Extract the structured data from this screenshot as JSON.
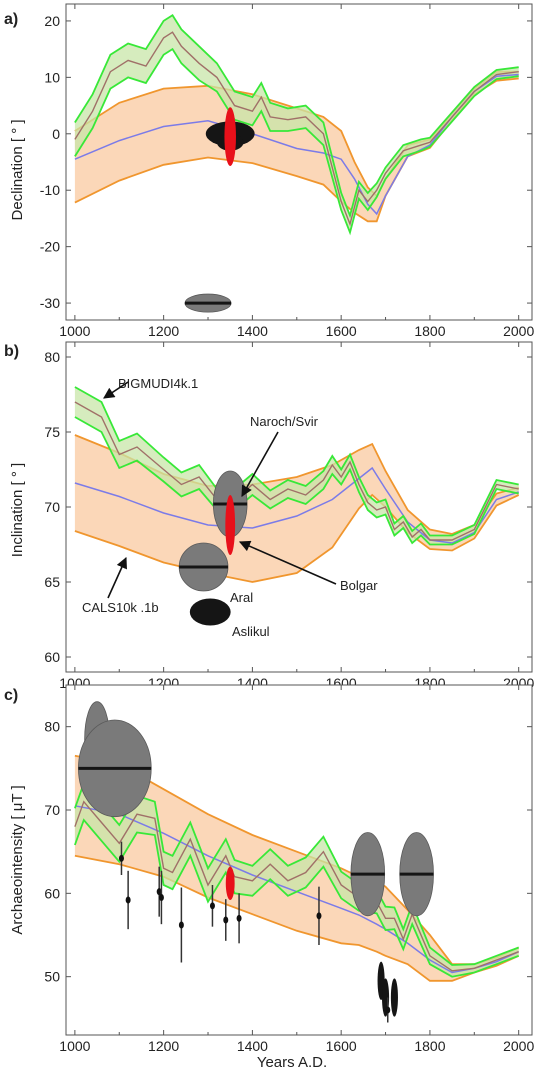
{
  "colors": {
    "band_fill": "#fbd7b8",
    "band_edge": "#f0962e",
    "cals_mean": "#7b7be8",
    "big_fill": "#c8e6a8",
    "big_edge": "#38e838",
    "big_mean": "#a07068",
    "red_marker": "#e8101a",
    "dark_ellipse": "#151515",
    "grey_ellipse": "#7a7a7a"
  },
  "annotations": {
    "bigmudi": "BIGMUDI4k.1",
    "naroch": "Naroch/Svir",
    "bolgar": "Bolgar",
    "aral": "Aral",
    "aslikul": "Aslikul",
    "cals": "CALS10k .1b"
  },
  "chart_data": [
    {
      "panel": "a)",
      "type": "line",
      "ylabel": "Declination [ ° ]",
      "xlabel": "",
      "xlim": [
        980,
        2030
      ],
      "ylim": [
        -33,
        23
      ],
      "xticks": [
        1000,
        1200,
        1400,
        1600,
        1800,
        2000
      ],
      "yticks": [
        20,
        10,
        0,
        -10,
        -20,
        -30
      ],
      "series": [
        {
          "name": "CALS10k .1b",
          "x": [
            1000,
            1100,
            1200,
            1300,
            1400,
            1500,
            1560,
            1600,
            1630,
            1660,
            1680,
            1700,
            1750,
            1800,
            1850,
            1900,
            1950,
            2000
          ],
          "mean": [
            -4.5,
            -1.2,
            1.3,
            2.3,
            0,
            -2.6,
            -3.4,
            -4.5,
            -8,
            -12.5,
            -14.2,
            -11,
            -4,
            -2,
            3,
            7.5,
            10.2,
            10.5
          ],
          "upper": [
            0.5,
            5.5,
            8,
            8.5,
            7,
            4.5,
            3,
            0.5,
            -5,
            -9.5,
            -11,
            -8,
            -2,
            -1,
            3.6,
            8,
            11,
            11
          ],
          "lower": [
            -12.2,
            -8.3,
            -5.5,
            -4.2,
            -5.2,
            -7.5,
            -9,
            -12,
            -14,
            -15.5,
            -15.5,
            -11,
            -4,
            -2.5,
            2.4,
            7,
            9.4,
            9.8
          ]
        },
        {
          "name": "BIGMUDI4k.1",
          "x": [
            1000,
            1040,
            1080,
            1120,
            1160,
            1200,
            1220,
            1240,
            1280,
            1320,
            1360,
            1400,
            1420,
            1440,
            1480,
            1520,
            1560,
            1600,
            1620,
            1640,
            1660,
            1680,
            1700,
            1740,
            1780,
            1800,
            1850,
            1900,
            1950,
            2000
          ],
          "mean": [
            -1,
            4,
            11,
            13,
            12,
            17,
            18,
            15.5,
            12.5,
            10,
            5,
            4,
            6.5,
            3,
            2.5,
            3,
            0,
            -12,
            -16,
            -10,
            -12,
            -10,
            -7,
            -3,
            -2,
            -1.5,
            3,
            7.5,
            10.5,
            11
          ],
          "half": [
            3,
            3,
            3,
            3,
            3,
            3,
            3,
            3,
            3,
            2.5,
            2.5,
            2.5,
            2.5,
            2.5,
            2,
            2,
            2,
            1.5,
            1.5,
            1.5,
            1.5,
            1.2,
            1,
            1,
            1,
            0.8,
            0.8,
            0.8,
            0.8,
            0.8
          ]
        }
      ],
      "records": [
        {
          "x": 1350,
          "y": 0,
          "rx": 55,
          "ry": 2.2,
          "style": "dark"
        },
        {
          "x": 1350,
          "y": -1.5,
          "rx": 30,
          "ry": 1.5,
          "style": "dark"
        },
        {
          "x": 1350,
          "y": -0.5,
          "rx": 13,
          "ry": 5.2,
          "style": "red"
        },
        {
          "x": 1300,
          "y": -30,
          "rx": 52,
          "ry": 1.6,
          "style": "grey",
          "line": true
        }
      ]
    },
    {
      "panel": "b)",
      "type": "line",
      "ylabel": "Inclination [ ° ]",
      "xlabel": "",
      "xlim": [
        980,
        2030
      ],
      "ylim": [
        59,
        81
      ],
      "xticks": [
        1000,
        1200,
        1400,
        1600,
        1800,
        2000
      ],
      "yticks": [
        80,
        75,
        70,
        65,
        60
      ],
      "series": [
        {
          "name": "CALS10k .1b",
          "x": [
            1000,
            1100,
            1200,
            1300,
            1400,
            1500,
            1580,
            1640,
            1670,
            1700,
            1750,
            1800,
            1850,
            1900,
            1950,
            2000
          ],
          "mean": [
            71.6,
            70.7,
            69.6,
            68.8,
            68.6,
            69.4,
            70.5,
            71.9,
            72.6,
            71.2,
            69,
            67.8,
            67.6,
            68.3,
            70.5,
            71
          ],
          "upper": [
            74.8,
            73.6,
            72.2,
            71.4,
            71.5,
            72,
            72.8,
            73.8,
            74.2,
            72.4,
            69.8,
            68.5,
            68.2,
            68.8,
            70.9,
            71.3
          ],
          "lower": [
            68.4,
            67.4,
            66.3,
            65.6,
            65,
            65.6,
            67.3,
            69.9,
            70.8,
            70,
            68.3,
            67.2,
            67.1,
            67.9,
            70.1,
            70.8
          ]
        },
        {
          "name": "BIGMUDI4k.1",
          "x": [
            1000,
            1060,
            1100,
            1140,
            1200,
            1240,
            1280,
            1320,
            1360,
            1400,
            1440,
            1480,
            1520,
            1560,
            1580,
            1600,
            1620,
            1640,
            1660,
            1680,
            1700,
            1720,
            1740,
            1760,
            1780,
            1800,
            1850,
            1900,
            1950,
            2000
          ],
          "mean": [
            77,
            76,
            73.5,
            74,
            72.5,
            71.5,
            72,
            70.5,
            70.5,
            71.5,
            70.5,
            71.2,
            70.8,
            71.8,
            72.8,
            72,
            73,
            71.5,
            70.3,
            69.8,
            70,
            68.5,
            69,
            68,
            68.5,
            67.8,
            67.8,
            68.5,
            71.5,
            71.2
          ],
          "half": [
            1,
            1,
            0.9,
            0.9,
            0.8,
            0.8,
            0.8,
            0.7,
            0.7,
            0.7,
            0.6,
            0.6,
            0.6,
            0.6,
            0.6,
            0.5,
            0.5,
            0.5,
            0.5,
            0.5,
            0.5,
            0.4,
            0.4,
            0.4,
            0.4,
            0.3,
            0.3,
            0.3,
            0.3,
            0.3
          ]
        }
      ],
      "records": [
        {
          "x": 1350,
          "y": 70.2,
          "rx": 38,
          "ry": 2.2,
          "style": "grey",
          "line": true,
          "label": "naroch"
        },
        {
          "x": 1350,
          "y": 68.8,
          "rx": 11,
          "ry": 2,
          "style": "red",
          "label": "bolgar"
        },
        {
          "x": 1290,
          "y": 66,
          "rx": 55,
          "ry": 1.6,
          "style": "grey",
          "line": true,
          "label": "aral"
        },
        {
          "x": 1305,
          "y": 63,
          "rx": 46,
          "ry": 0.9,
          "style": "dark",
          "label": "aslikul"
        }
      ]
    },
    {
      "panel": "c)",
      "type": "line",
      "ylabel": "Archaeointensity [ μT ]",
      "xlabel": "Years A.D.",
      "xlim": [
        980,
        2030
      ],
      "ylim": [
        43,
        85
      ],
      "xticks": [
        1000,
        1200,
        1400,
        1600,
        1800,
        2000
      ],
      "yticks": [
        80,
        70,
        60,
        50
      ],
      "series": [
        {
          "name": "CALS10k .1b",
          "x": [
            1000,
            1100,
            1200,
            1300,
            1400,
            1500,
            1600,
            1640,
            1680,
            1700,
            1750,
            1800,
            1850,
            1900,
            1950,
            2000
          ],
          "mean": [
            70.5,
            69.5,
            67.2,
            64.5,
            62.2,
            60.2,
            58.2,
            57.4,
            56.3,
            55.7,
            54,
            52,
            50.5,
            51,
            51.8,
            53
          ],
          "upper": [
            76.5,
            75.5,
            72.5,
            69.5,
            67,
            65,
            63,
            62,
            61.5,
            60.8,
            58,
            55,
            51.5,
            51.5,
            52.3,
            53.5
          ],
          "lower": [
            64.5,
            63.5,
            62,
            59.5,
            57.5,
            55.5,
            54,
            53.8,
            53,
            52.5,
            51.5,
            49.5,
            49.5,
            50.5,
            51.3,
            52.5
          ]
        },
        {
          "name": "BIGMUDI4k.1",
          "x": [
            1000,
            1020,
            1060,
            1100,
            1140,
            1180,
            1200,
            1220,
            1260,
            1300,
            1340,
            1360,
            1400,
            1440,
            1480,
            1520,
            1560,
            1600,
            1640,
            1680,
            1700,
            1720,
            1740,
            1760,
            1780,
            1800,
            1850,
            1900,
            1950,
            2000
          ],
          "mean": [
            68,
            71,
            68.5,
            66,
            69.5,
            69,
            63,
            62.5,
            66.5,
            61,
            64.5,
            62,
            61.5,
            63.5,
            61.5,
            62.5,
            65,
            61,
            59.5,
            59,
            57,
            57,
            54.5,
            57.5,
            55,
            52.5,
            50.7,
            51,
            52,
            53
          ],
          "half": [
            2.2,
            2.2,
            2.2,
            2.2,
            2.2,
            2,
            2,
            2,
            2,
            2,
            2,
            2,
            1.8,
            1.8,
            1.8,
            1.8,
            1.8,
            1.6,
            1.6,
            1.4,
            1.4,
            1.3,
            1.2,
            1.2,
            1.1,
            1,
            0.7,
            0.5,
            0.5,
            0.5
          ]
        }
      ],
      "records": [
        {
          "x": 1050,
          "y": 78.5,
          "rx": 28,
          "ry": 4.5,
          "style": "grey"
        },
        {
          "x": 1050,
          "y": 77.5,
          "rx": 22,
          "ry": 2.4,
          "style": "dark"
        },
        {
          "x": 1090,
          "y": 75,
          "rx": 82,
          "ry": 5.8,
          "style": "grey",
          "line": true
        },
        {
          "x": 1350,
          "y": 61.2,
          "rx": 10,
          "ry": 2,
          "style": "red"
        },
        {
          "x": 1660,
          "y": 62.3,
          "rx": 38,
          "ry": 5,
          "style": "grey",
          "line": true
        },
        {
          "x": 1770,
          "y": 62.3,
          "rx": 38,
          "ry": 5,
          "style": "grey",
          "line": true
        },
        {
          "x": 1690,
          "y": 49.5,
          "rx": 8,
          "ry": 2.3,
          "style": "dark"
        },
        {
          "x": 1700,
          "y": 47.5,
          "rx": 8,
          "ry": 2.3,
          "style": "dark"
        },
        {
          "x": 1720,
          "y": 47.5,
          "rx": 8,
          "ry": 2.3,
          "style": "dark"
        }
      ],
      "points": [
        {
          "x": 1105,
          "y": 64.2,
          "e": 2
        },
        {
          "x": 1120,
          "y": 59.2,
          "e": 3.5
        },
        {
          "x": 1190,
          "y": 60.2,
          "e": 3
        },
        {
          "x": 1195,
          "y": 59.5,
          "e": 3.2
        },
        {
          "x": 1240,
          "y": 56.2,
          "e": 4.5
        },
        {
          "x": 1310,
          "y": 58.5,
          "e": 2.5
        },
        {
          "x": 1340,
          "y": 56.8,
          "e": 2.5
        },
        {
          "x": 1370,
          "y": 57,
          "e": 3
        },
        {
          "x": 1550,
          "y": 57.3,
          "e": 3.5
        },
        {
          "x": 1705,
          "y": 46,
          "e": 1.5
        }
      ]
    }
  ]
}
